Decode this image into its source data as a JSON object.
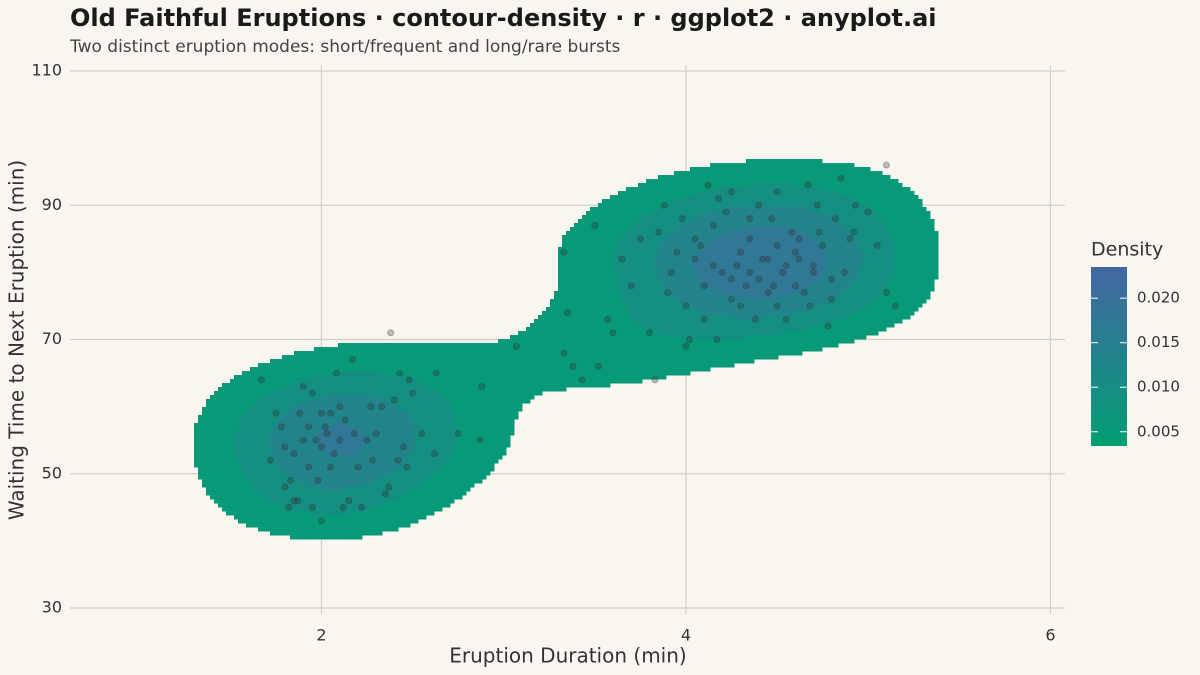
{
  "chart_data": {
    "type": "contour-density",
    "title": "Old Faithful Eruptions · contour-density · r · ggplot2 · anyplot.ai",
    "subtitle": "Two distinct eruption modes: short/frequent and long/rare bursts",
    "x_label": "Eruption Duration (min)",
    "y_label": "Waiting Time to Next Eruption (min)",
    "xlim": [
      0.62,
      6.08
    ],
    "xticks": [
      2,
      4,
      6
    ],
    "ylim": [
      30,
      110
    ],
    "yticks": [
      30,
      50,
      70,
      90,
      110
    ],
    "grid": true,
    "point_color": "#333333",
    "colorbar": {
      "title": "Density",
      "lim": [
        0.0034,
        0.0235
      ],
      "ticks": [
        0.005,
        {
          "value": 0.01,
          "label": "0.010"
        },
        0.015,
        {
          "value": 0.02,
          "label": "0.020"
        }
      ],
      "colors": [
        "#009E73",
        "#4467A3"
      ],
      "legend": "right"
    },
    "x": [
      1.75,
      1.8,
      1.8,
      1.85,
      1.87,
      1.9,
      1.93,
      1.95,
      1.97,
      2.0,
      2.02,
      2.05,
      2.07,
      2.1,
      2.13,
      2.17,
      2.2,
      2.25,
      2.3,
      2.33,
      2.37,
      2.4,
      2.43,
      2.45,
      2.47,
      2.55,
      2.62,
      2.63,
      1.67,
      1.72,
      1.78,
      1.83,
      1.88,
      1.9,
      1.95,
      1.98,
      2.0,
      2.03,
      2.08,
      2.12,
      2.15,
      2.22,
      2.28,
      2.35,
      2.42,
      2.48,
      2.5,
      2.05,
      1.85,
      1.93,
      2.0,
      1.82,
      2.1,
      2.18,
      2.27,
      2.75,
      3.33,
      3.35,
      3.5,
      3.57,
      3.6,
      3.65,
      3.7,
      3.75,
      3.8,
      3.85,
      3.9,
      3.92,
      3.95,
      4.0,
      4.0,
      4.05,
      4.08,
      4.1,
      4.12,
      4.15,
      4.17,
      4.2,
      4.22,
      4.25,
      4.28,
      4.3,
      4.33,
      4.35,
      4.38,
      4.4,
      4.42,
      4.45,
      4.47,
      4.5,
      4.5,
      4.53,
      4.55,
      4.58,
      4.6,
      4.62,
      4.65,
      4.67,
      4.7,
      4.72,
      4.75,
      4.78,
      4.8,
      4.82,
      4.85,
      4.87,
      4.9,
      4.93,
      5.0,
      5.05,
      5.1,
      5.15,
      3.88,
      3.98,
      4.02,
      4.1,
      4.18,
      4.25,
      4.35,
      4.45,
      4.55,
      4.62,
      4.68,
      4.73,
      4.8,
      4.92,
      4.3,
      4.05,
      4.15,
      4.4,
      4.5,
      4.6,
      4.7,
      4.35,
      4.25,
      4.48,
      2.38,
      2.88,
      2.87,
      3.07,
      3.33,
      3.38,
      3.43,
      3.52,
      3.83,
      5.1
    ],
    "y": [
      59,
      54,
      48,
      46,
      46,
      55,
      51,
      62,
      55,
      54,
      57,
      59,
      53,
      60,
      58,
      67,
      51,
      55,
      56,
      60,
      48,
      61,
      65,
      54,
      51,
      56,
      53,
      65,
      64,
      52,
      57,
      49,
      59,
      63,
      45,
      49,
      59,
      56,
      65,
      45,
      46,
      45,
      52,
      47,
      52,
      64,
      62,
      51,
      53,
      57,
      43,
      45,
      55,
      56,
      60,
      56,
      83,
      74,
      87,
      73,
      71,
      82,
      78,
      85,
      71,
      86,
      77,
      80,
      83,
      75,
      69,
      82,
      84,
      78,
      93,
      87,
      70,
      80,
      89,
      76,
      81,
      83,
      78,
      85,
      73,
      79,
      82,
      77,
      88,
      75,
      84,
      80,
      73,
      86,
      78,
      82,
      77,
      93,
      81,
      90,
      84,
      72,
      79,
      88,
      94,
      80,
      85,
      90,
      89,
      84,
      77,
      75,
      90,
      88,
      70,
      73,
      91,
      79,
      80,
      82,
      81,
      85,
      75,
      86,
      76,
      86,
      75,
      85,
      81,
      90,
      92,
      83,
      80,
      88,
      92,
      78,
      71,
      63,
      55,
      69,
      68,
      66,
      64,
      66,
      64,
      96
    ]
  }
}
